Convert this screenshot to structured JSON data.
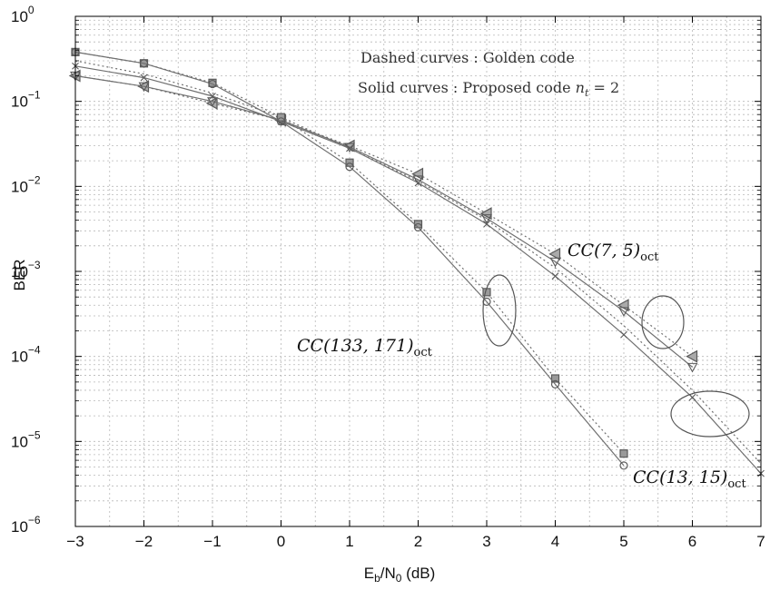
{
  "chart_data": {
    "type": "line",
    "xlabel": {
      "main": "E",
      "sub1": "b",
      "mid": "/N",
      "sub2": "0",
      "tail": " (dB)"
    },
    "ylabel": "BER",
    "xlim": [
      -3,
      7
    ],
    "ylim": [
      1e-06,
      1
    ],
    "yscale": "log",
    "grid": true,
    "x_ticks": [
      "−3",
      "−2",
      "−1",
      "0",
      "1",
      "2",
      "3",
      "4",
      "5",
      "6",
      "7"
    ],
    "y_ticks": [
      {
        "base": "10",
        "exp": "0"
      },
      {
        "base": "10",
        "exp": "−1"
      },
      {
        "base": "10",
        "exp": "−2"
      },
      {
        "base": "10",
        "exp": "−3"
      },
      {
        "base": "10",
        "exp": "−4"
      },
      {
        "base": "10",
        "exp": "−5"
      },
      {
        "base": "10",
        "exp": "−6"
      }
    ],
    "series": [
      {
        "code": "CC(7,5)",
        "style": "dashed",
        "marker": "triangle-left",
        "x": [
          -3,
          -2,
          -1,
          0,
          1,
          2,
          3,
          4,
          5,
          6
        ],
        "y": [
          0.2,
          0.15,
          0.095,
          0.06,
          0.03,
          0.014,
          0.0048,
          0.0016,
          0.0004,
          0.0001
        ]
      },
      {
        "code": "CC(7,5)",
        "style": "solid",
        "marker": "triangle-down",
        "x": [
          -3,
          -2,
          -1,
          0,
          1,
          2,
          3,
          4,
          5,
          6
        ],
        "y": [
          0.2,
          0.15,
          0.1,
          0.06,
          0.029,
          0.012,
          0.0042,
          0.0013,
          0.00034,
          7.5e-05
        ]
      },
      {
        "code": "CC(13,15)",
        "style": "dashed",
        "marker": "none",
        "x": [
          -3,
          -2,
          -1,
          0,
          1,
          2,
          3,
          4,
          5,
          6,
          7
        ],
        "y": [
          0.3,
          0.21,
          0.125,
          0.065,
          0.028,
          0.0115,
          0.004,
          0.0011,
          0.00023,
          4e-05,
          5.5e-06
        ]
      },
      {
        "code": "CC(13,15)",
        "style": "solid",
        "marker": "cross",
        "x": [
          -3,
          -2,
          -1,
          0,
          1,
          2,
          3,
          4,
          5,
          6,
          7
        ],
        "y": [
          0.26,
          0.19,
          0.115,
          0.058,
          0.028,
          0.011,
          0.0036,
          0.00088,
          0.00018,
          3.3e-05,
          4.2e-06
        ]
      },
      {
        "code": "CC(133,171)",
        "style": "dashed",
        "marker": "square",
        "x": [
          -3,
          -2,
          -1,
          0,
          1,
          2,
          3,
          4,
          5
        ],
        "y": [
          0.38,
          0.28,
          0.165,
          0.065,
          0.019,
          0.0036,
          0.00057,
          5.5e-05,
          7.2e-06
        ]
      },
      {
        "code": "CC(133,171)",
        "style": "solid",
        "marker": "circle",
        "x": [
          -3,
          -2,
          -1,
          0,
          1,
          2,
          3,
          4,
          5
        ],
        "y": [
          0.38,
          0.28,
          0.16,
          0.058,
          0.017,
          0.0033,
          0.00044,
          4.7e-05,
          5.2e-06
        ]
      }
    ],
    "legend_text": {
      "dashed": "Dashed curves : Golden code",
      "solid_prefix": "Solid curves : Proposed code ",
      "solid_var": "n",
      "solid_var_sub": "t",
      "solid_suffix": " = 2"
    },
    "annotations": [
      {
        "id": "cc75",
        "main": "CC(7, 5)",
        "sub": "oct"
      },
      {
        "id": "cc133",
        "main": "CC(133, 171)",
        "sub": "oct"
      },
      {
        "id": "cc1315",
        "main": "CC(13, 15)",
        "sub": "oct"
      }
    ],
    "colors": {
      "line": "#707070",
      "marker": "#5a5a5a",
      "grid": "#b8b8b8",
      "axis": "#000000"
    }
  }
}
